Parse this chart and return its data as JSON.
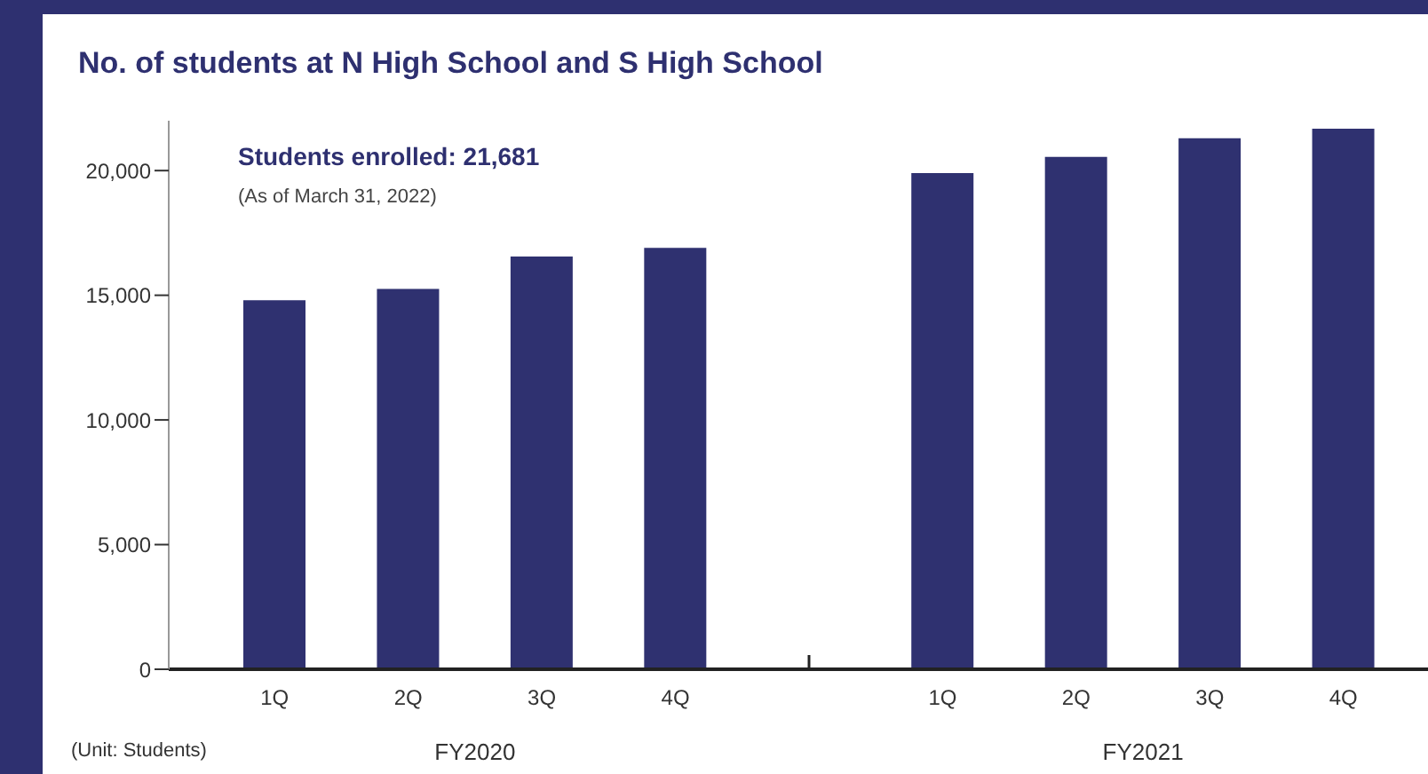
{
  "chart_data": {
    "type": "bar",
    "title": "No. of students at N High School and S High School",
    "categories": [
      "1Q",
      "2Q",
      "3Q",
      "4Q",
      null,
      "1Q",
      "2Q",
      "3Q",
      "4Q"
    ],
    "values": [
      14800,
      15250,
      16550,
      16900,
      null,
      19900,
      20550,
      21300,
      21681
    ],
    "color": "#2f3170",
    "ylim": [
      0,
      22000
    ],
    "yticks": [
      0,
      {
        "value": 5000,
        "label": "5,000"
      },
      {
        "value": 10000,
        "label": "10,000"
      },
      {
        "value": 15000,
        "label": "15,000"
      },
      {
        "value": 20000,
        "label": "20,000"
      }
    ],
    "annotations": [
      "Students enrolled: 21,681",
      "(As of March 31, 2022)",
      "(Unit: Students)",
      "FY2020",
      "FY2021"
    ]
  }
}
